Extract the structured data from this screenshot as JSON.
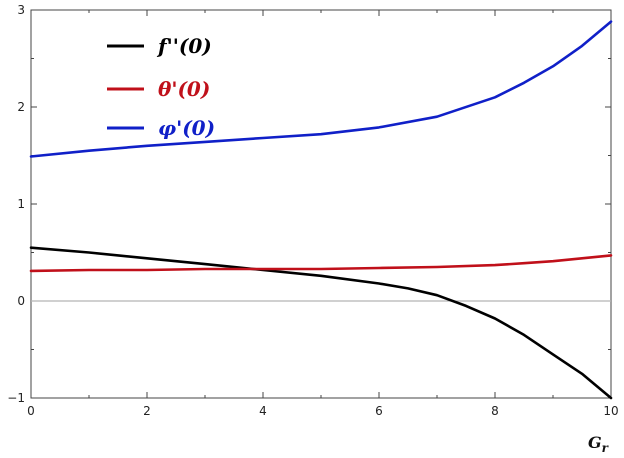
{
  "chart_data": {
    "type": "line",
    "xlabel": "G_r",
    "xlim": [
      0,
      10
    ],
    "ylim": [
      -1,
      3
    ],
    "x_ticks": [
      0,
      2,
      4,
      6,
      8,
      10
    ],
    "y_ticks": [
      -1,
      0,
      1,
      2,
      3
    ],
    "grid": false,
    "zero_line": true,
    "legend_position": "top-left",
    "series": [
      {
        "name": "f''(0)",
        "color": "#000000",
        "x": [
          0,
          1,
          2,
          3,
          4,
          5,
          6,
          6.5,
          7,
          7.5,
          8,
          8.5,
          9,
          9.5,
          10
        ],
        "y": [
          0.55,
          0.5,
          0.44,
          0.38,
          0.32,
          0.26,
          0.18,
          0.13,
          0.06,
          -0.05,
          -0.18,
          -0.35,
          -0.55,
          -0.75,
          -1.0
        ]
      },
      {
        "name": "θ'(0)",
        "color": "#c0101a",
        "x": [
          0,
          1,
          2,
          3,
          4,
          5,
          6,
          7,
          8,
          8.5,
          9,
          9.5,
          10
        ],
        "y": [
          0.31,
          0.32,
          0.32,
          0.33,
          0.33,
          0.33,
          0.34,
          0.35,
          0.37,
          0.39,
          0.41,
          0.44,
          0.47
        ]
      },
      {
        "name": "φ'(0)",
        "color": "#1020c8",
        "x": [
          0,
          1,
          2,
          3,
          4,
          5,
          6,
          7,
          8,
          8.5,
          9,
          9.5,
          10
        ],
        "y": [
          1.49,
          1.55,
          1.6,
          1.64,
          1.68,
          1.72,
          1.79,
          1.9,
          2.1,
          2.25,
          2.42,
          2.63,
          2.88
        ]
      }
    ]
  }
}
